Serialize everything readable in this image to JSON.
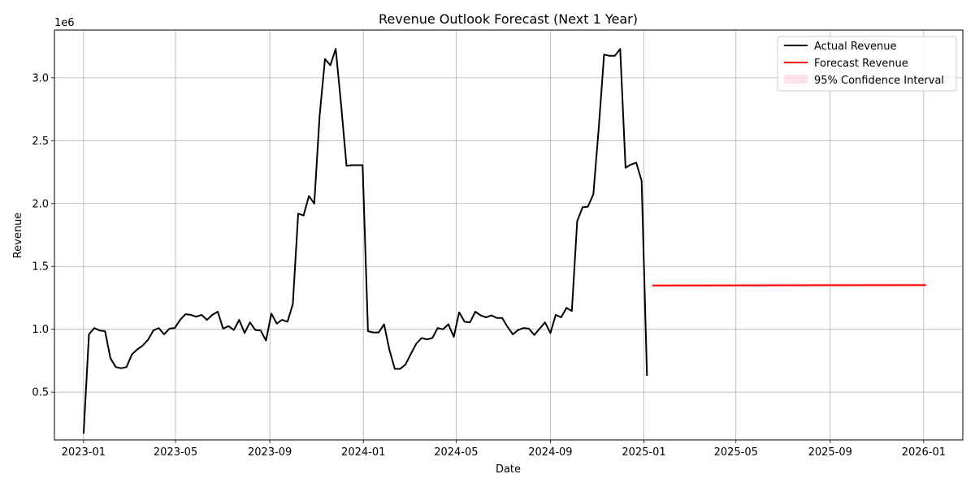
{
  "chart_data": {
    "type": "line",
    "title": "Revenue Outlook Forecast (Next 1 Year)",
    "xlabel": "Date",
    "ylabel": "Revenue",
    "y_multiplier_label": "1e6",
    "xlim": [
      "2022-11-24",
      "2026-02-21"
    ],
    "ylim": [
      0.12,
      3.38
    ],
    "grid": true,
    "legend_position": "top-right",
    "x_ticks": [
      "2023-01-01",
      "2023-05-01",
      "2023-09-01",
      "2024-01-01",
      "2024-05-01",
      "2024-09-01",
      "2025-01-01",
      "2025-05-01",
      "2025-09-01",
      "2026-01-01"
    ],
    "x_tick_labels": [
      "2023-01",
      "2023-05",
      "2023-09",
      "2024-01",
      "2024-05",
      "2024-09",
      "2025-01",
      "2025-05",
      "2025-09",
      "2026-01"
    ],
    "y_ticks": [
      0.5,
      1.0,
      1.5,
      2.0,
      2.5,
      3.0
    ],
    "y_tick_labels": [
      "0.5",
      "1.0",
      "1.5",
      "2.0",
      "2.5",
      "3.0"
    ],
    "series": [
      {
        "name": "Actual Revenue",
        "color": "#000000",
        "points": [
          [
            "2023-01-01",
            0.17
          ],
          [
            "2023-01-08",
            0.96
          ],
          [
            "2023-01-15",
            1.01
          ],
          [
            "2023-01-22",
            0.99
          ],
          [
            "2023-01-29",
            0.985
          ],
          [
            "2023-02-05",
            0.77
          ],
          [
            "2023-02-12",
            0.7
          ],
          [
            "2023-02-19",
            0.69
          ],
          [
            "2023-02-26",
            0.7
          ],
          [
            "2023-03-05",
            0.8
          ],
          [
            "2023-03-12",
            0.84
          ],
          [
            "2023-03-19",
            0.87
          ],
          [
            "2023-03-26",
            0.915
          ],
          [
            "2023-04-02",
            0.99
          ],
          [
            "2023-04-09",
            1.01
          ],
          [
            "2023-04-16",
            0.96
          ],
          [
            "2023-04-23",
            1.005
          ],
          [
            "2023-04-30",
            1.01
          ],
          [
            "2023-05-07",
            1.075
          ],
          [
            "2023-05-14",
            1.12
          ],
          [
            "2023-05-21",
            1.115
          ],
          [
            "2023-05-28",
            1.1
          ],
          [
            "2023-06-04",
            1.115
          ],
          [
            "2023-06-11",
            1.075
          ],
          [
            "2023-06-18",
            1.115
          ],
          [
            "2023-06-25",
            1.14
          ],
          [
            "2023-07-02",
            1.005
          ],
          [
            "2023-07-09",
            1.025
          ],
          [
            "2023-07-16",
            0.995
          ],
          [
            "2023-07-23",
            1.075
          ],
          [
            "2023-07-30",
            0.97
          ],
          [
            "2023-08-06",
            1.055
          ],
          [
            "2023-08-13",
            0.995
          ],
          [
            "2023-08-20",
            0.99
          ],
          [
            "2023-08-27",
            0.91
          ],
          [
            "2023-09-03",
            1.125
          ],
          [
            "2023-09-10",
            1.045
          ],
          [
            "2023-09-17",
            1.075
          ],
          [
            "2023-09-24",
            1.06
          ],
          [
            "2023-10-01",
            1.2
          ],
          [
            "2023-10-08",
            1.92
          ],
          [
            "2023-10-15",
            1.905
          ],
          [
            "2023-10-22",
            2.06
          ],
          [
            "2023-10-29",
            2.0
          ],
          [
            "2023-11-05",
            2.7
          ],
          [
            "2023-11-12",
            3.15
          ],
          [
            "2023-11-19",
            3.1
          ],
          [
            "2023-11-26",
            3.23
          ],
          [
            "2023-12-03",
            2.78
          ],
          [
            "2023-12-10",
            2.3
          ],
          [
            "2023-12-17",
            2.305
          ],
          [
            "2023-12-24",
            2.305
          ],
          [
            "2023-12-31",
            2.305
          ],
          [
            "2024-01-07",
            0.985
          ],
          [
            "2024-01-14",
            0.975
          ],
          [
            "2024-01-21",
            0.975
          ],
          [
            "2024-01-28",
            1.04
          ],
          [
            "2024-02-04",
            0.835
          ],
          [
            "2024-02-11",
            0.685
          ],
          [
            "2024-02-18",
            0.685
          ],
          [
            "2024-02-25",
            0.72
          ],
          [
            "2024-03-03",
            0.805
          ],
          [
            "2024-03-10",
            0.885
          ],
          [
            "2024-03-17",
            0.93
          ],
          [
            "2024-03-24",
            0.92
          ],
          [
            "2024-03-31",
            0.93
          ],
          [
            "2024-04-07",
            1.01
          ],
          [
            "2024-04-14",
            1.0
          ],
          [
            "2024-04-21",
            1.04
          ],
          [
            "2024-04-28",
            0.94
          ],
          [
            "2024-05-05",
            1.135
          ],
          [
            "2024-05-12",
            1.06
          ],
          [
            "2024-05-19",
            1.055
          ],
          [
            "2024-05-26",
            1.14
          ],
          [
            "2024-06-02",
            1.11
          ],
          [
            "2024-06-09",
            1.095
          ],
          [
            "2024-06-16",
            1.11
          ],
          [
            "2024-06-23",
            1.09
          ],
          [
            "2024-06-30",
            1.09
          ],
          [
            "2024-07-07",
            1.02
          ],
          [
            "2024-07-14",
            0.96
          ],
          [
            "2024-07-21",
            0.995
          ],
          [
            "2024-07-28",
            1.01
          ],
          [
            "2024-08-04",
            1.005
          ],
          [
            "2024-08-11",
            0.955
          ],
          [
            "2024-08-18",
            1.005
          ],
          [
            "2024-08-25",
            1.055
          ],
          [
            "2024-09-01",
            0.97
          ],
          [
            "2024-09-08",
            1.115
          ],
          [
            "2024-09-15",
            1.095
          ],
          [
            "2024-09-22",
            1.17
          ],
          [
            "2024-09-29",
            1.145
          ],
          [
            "2024-10-06",
            1.86
          ],
          [
            "2024-10-13",
            1.97
          ],
          [
            "2024-10-20",
            1.975
          ],
          [
            "2024-10-27",
            2.075
          ],
          [
            "2024-11-03",
            2.6
          ],
          [
            "2024-11-10",
            3.185
          ],
          [
            "2024-11-17",
            3.175
          ],
          [
            "2024-11-24",
            3.175
          ],
          [
            "2024-12-01",
            3.23
          ],
          [
            "2024-12-08",
            2.285
          ],
          [
            "2024-12-15",
            2.31
          ],
          [
            "2024-12-22",
            2.325
          ],
          [
            "2024-12-29",
            2.18
          ],
          [
            "2025-01-05",
            0.63
          ]
        ]
      },
      {
        "name": "Forecast Revenue",
        "color": "#ff0000",
        "points": [
          [
            "2025-01-12",
            1.348
          ],
          [
            "2026-01-04",
            1.352
          ]
        ]
      },
      {
        "name": "95% Confidence Interval",
        "color": "#ffc0cb",
        "band": true,
        "lower": [
          [
            "2025-01-12",
            1.335
          ],
          [
            "2026-01-04",
            1.337
          ]
        ],
        "upper": [
          [
            "2025-01-12",
            1.361
          ],
          [
            "2026-01-04",
            1.367
          ]
        ]
      }
    ]
  }
}
